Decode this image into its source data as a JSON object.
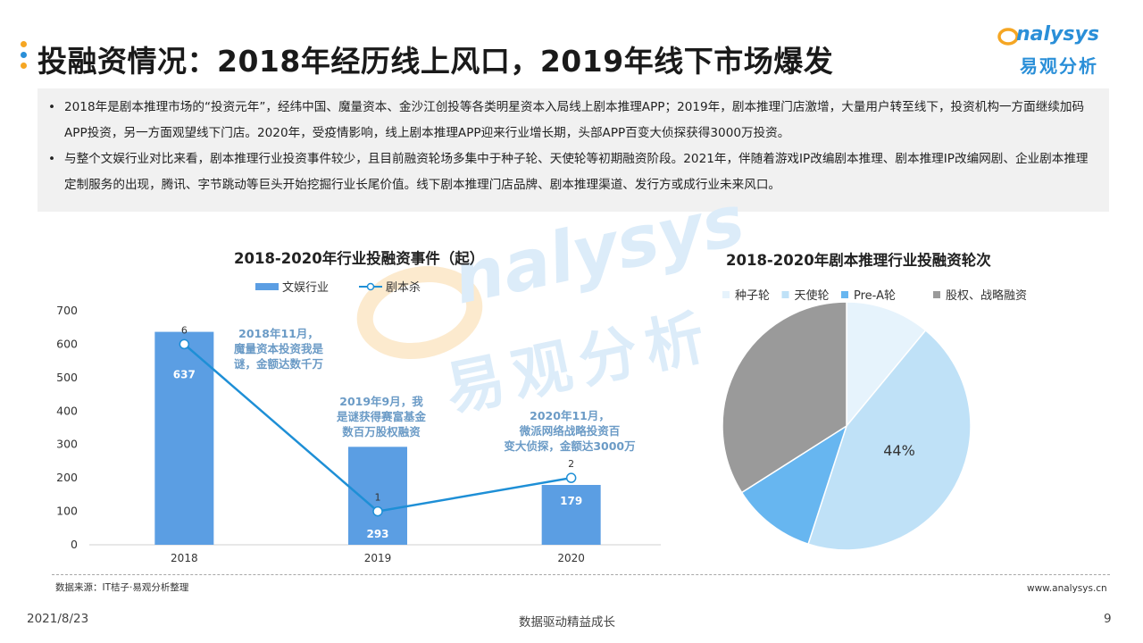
{
  "header": {
    "title": "投融资情况：2018年经历线上风口，2019年线下市场爆发",
    "logo_text": "nalysys",
    "logo_cn": "易观分析",
    "dot_colors": [
      "#f5a623",
      "#2a8fd8",
      "#f5a623"
    ]
  },
  "summary": [
    "2018年是剧本推理市场的“投资元年”，经纬中国、魔量资本、金沙江创投等各类明星资本入局线上剧本推理APP；2019年，剧本推理门店激增，大量用户转至线下，投资机构一方面继续加码APP投资，另一方面观望线下门店。2020年，受疫情影响，线上剧本推理APP迎来行业增长期，头部APP百变大侦探获得3000万投资。",
    "与整个文娱行业对比来看，剧本推理行业投资事件较少，且目前融资轮场多集中于种子轮、天使轮等初期融资阶段。2021年，伴随着游戏IP改编剧本推理、剧本推理IP改编网剧、企业剧本推理定制服务的出现，腾讯、字节跳动等巨头开始挖掘行业长尾价值。线下剧本推理门店品牌、剧本推理渠道、发行方或成行业未来风口。"
  ],
  "chart_data": [
    {
      "type": "bar",
      "title": "2018-2020年行业投融资事件（起）",
      "categories": [
        "2018",
        "2019",
        "2020"
      ],
      "ylim": [
        0,
        700
      ],
      "yticks": [
        "0",
        "100",
        "200",
        "300",
        "400",
        "500",
        "600",
        "700"
      ],
      "legend_position": "top",
      "series": [
        {
          "name": "文娱行业",
          "kind": "bar",
          "values": [
            637,
            293,
            179
          ],
          "labels": [
            "637",
            "293",
            "179"
          ],
          "color": "#5b9ee3"
        },
        {
          "name": "剧本杀",
          "kind": "line",
          "values": [
            6,
            1,
            2
          ],
          "labels": [
            "6",
            "1",
            "2"
          ],
          "color": "#1e8fd6"
        }
      ],
      "annotations": [
        "2018年11月，魔量资本投资我是谜，金额达数千万",
        "2019年9月，我是谜获得赛富基金数百万股权融资",
        "2020年11月，微派网络战略投资百变大侦探，金额达3000万"
      ]
    },
    {
      "type": "pie",
      "title": "2018-2020年剧本推理行业投融资轮次",
      "legend_position": "top",
      "slices": [
        {
          "name": "种子轮",
          "value": 11,
          "color": "#e6f3fc"
        },
        {
          "name": "天使轮",
          "value": 44,
          "color": "#bfe1f7",
          "label": "44%"
        },
        {
          "name": "Pre-A轮",
          "value": 11,
          "color": "#67b6f0"
        },
        {
          "name": "股权、战略融资",
          "value": 34,
          "color": "#9a9a9a"
        }
      ]
    }
  ],
  "footer": {
    "source": "数据来源：IT桔子·易观分析整理",
    "site": "www.analysys.cn",
    "date": "2021/8/23",
    "slogan": "数据驱动精益成长",
    "page": "9"
  }
}
